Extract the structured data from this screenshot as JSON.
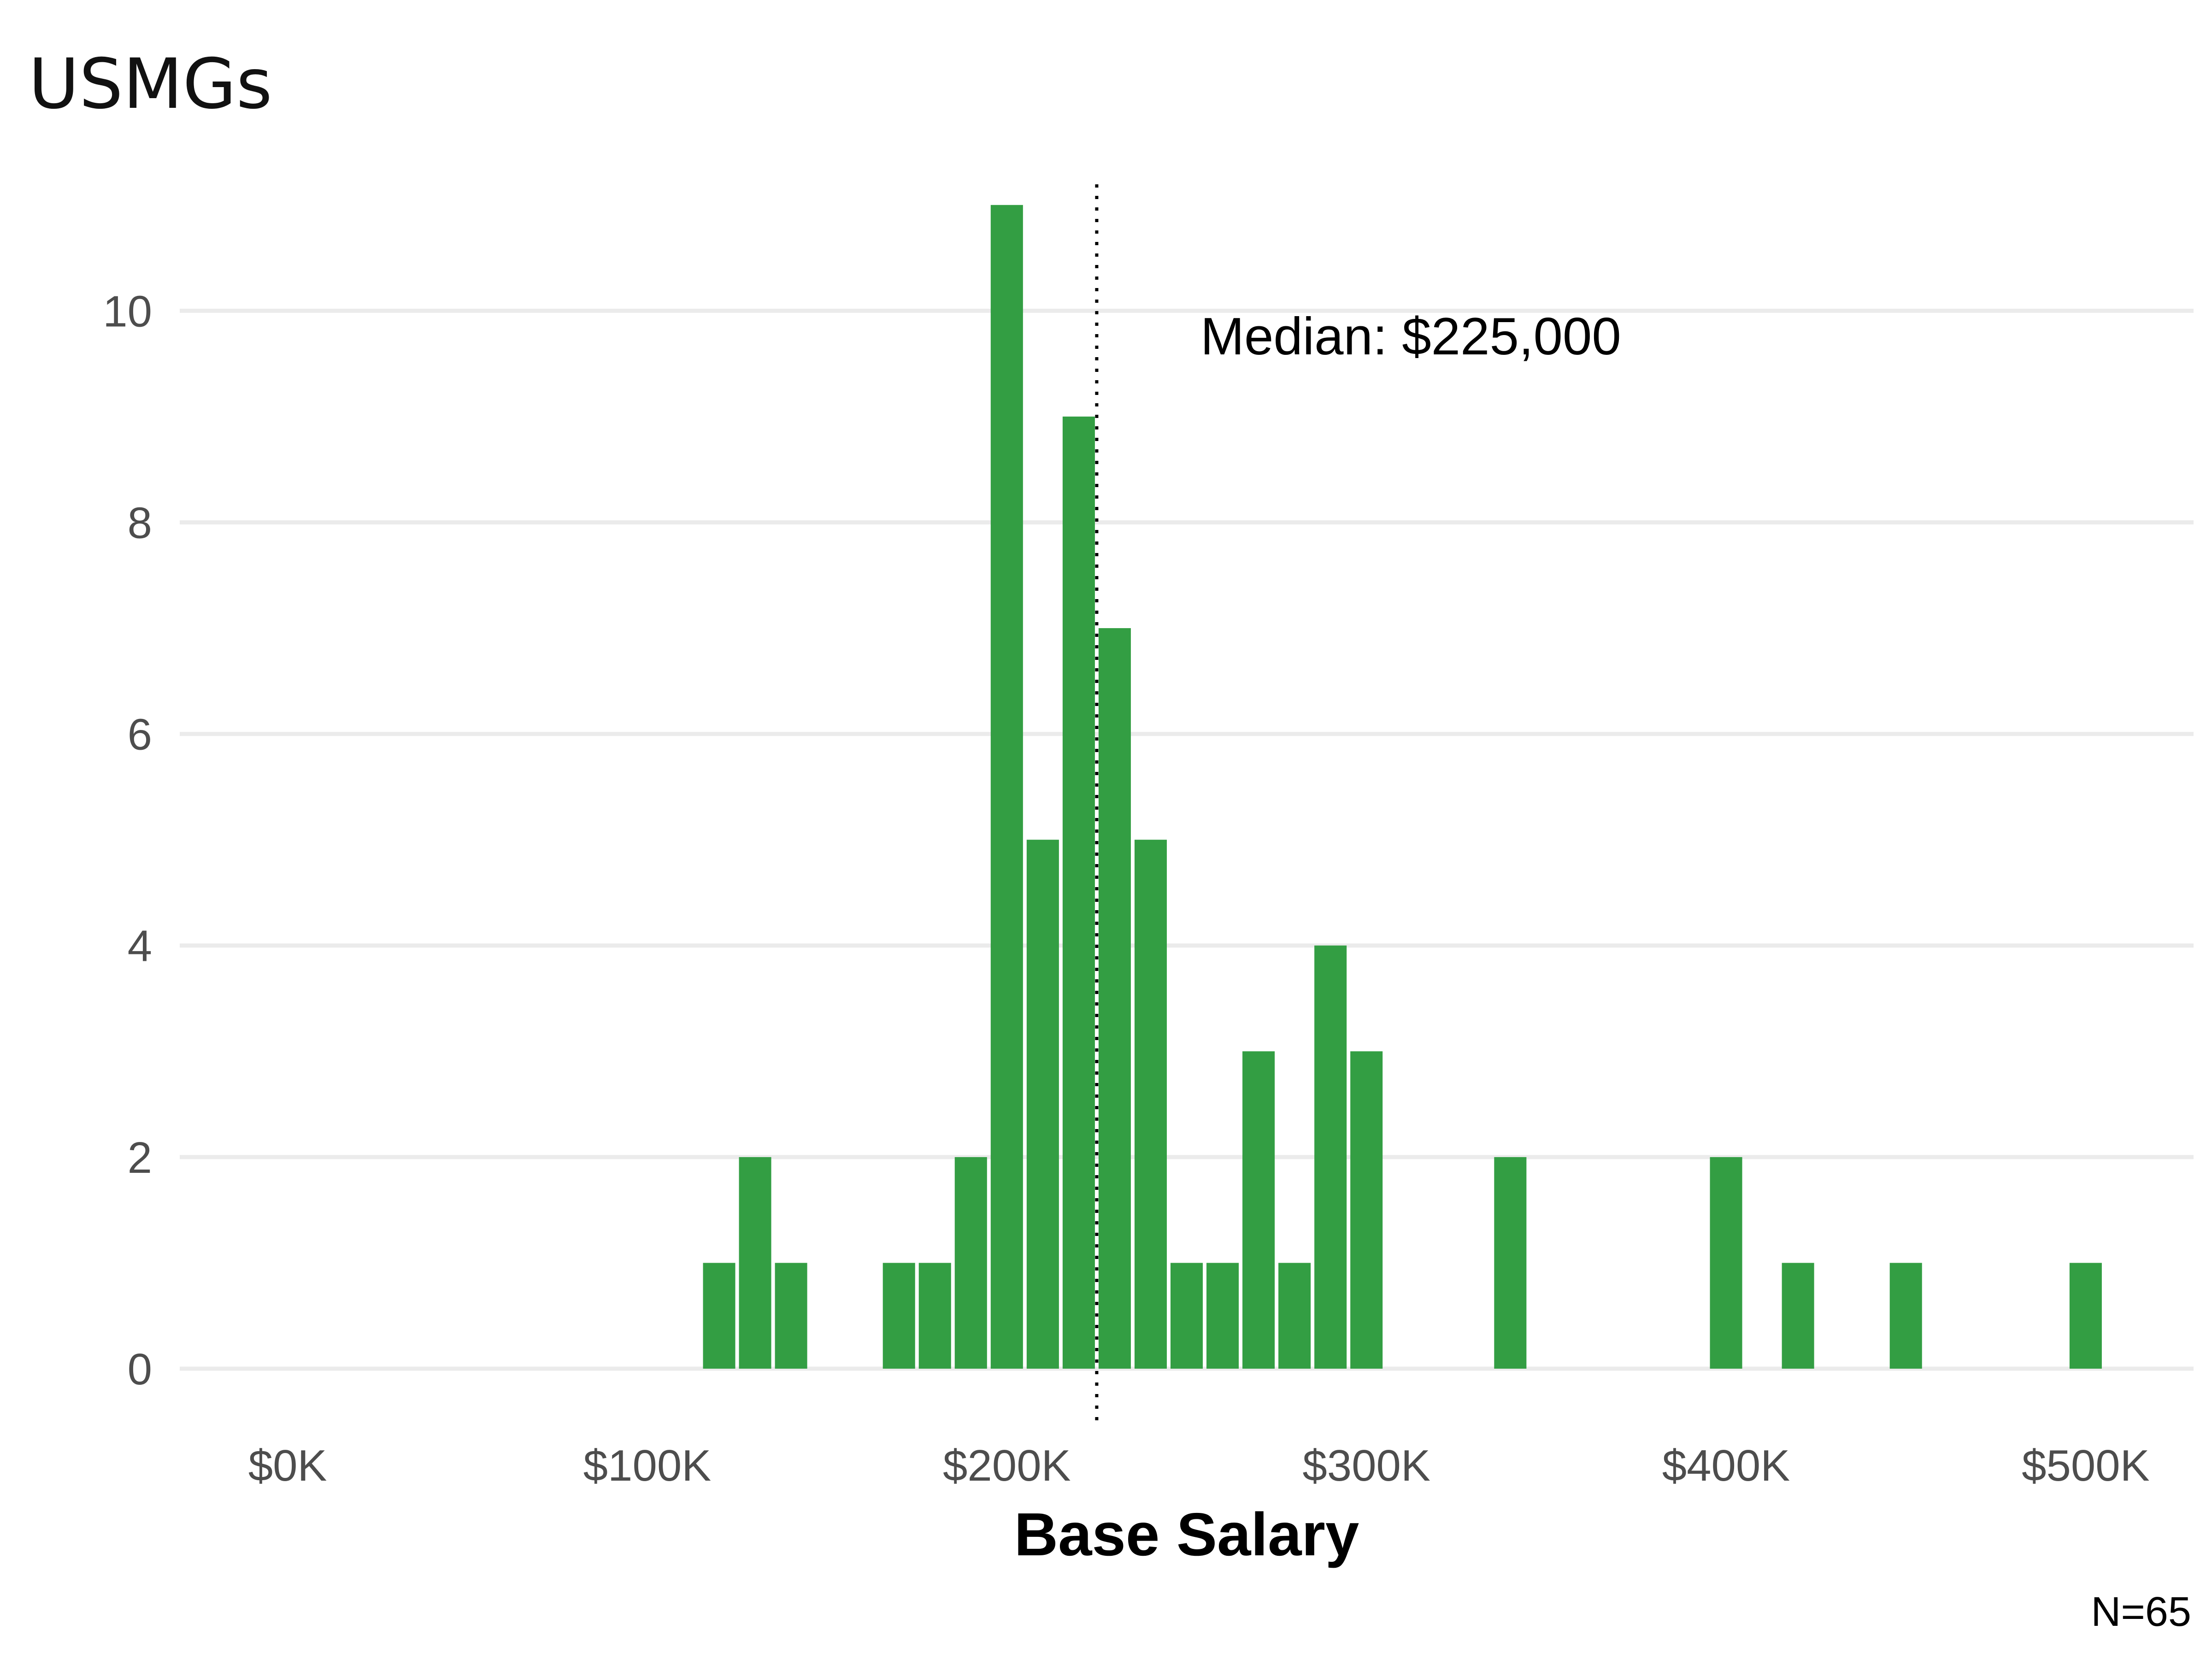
{
  "chart_data": {
    "type": "bar",
    "title": "USMGs",
    "xlabel": "Base Salary",
    "ylabel": "",
    "x_tick_labels": [
      "$0K",
      "$100K",
      "$200K",
      "$300K",
      "$400K",
      "$500K"
    ],
    "x_ticks": [
      0,
      100000,
      200000,
      300000,
      400000,
      500000
    ],
    "y_ticks": [
      0,
      2,
      4,
      6,
      8,
      10
    ],
    "xlim": [
      -30000,
      530000
    ],
    "ylim": [
      0,
      11.5
    ],
    "bin_width": 10000,
    "bin_centers": [
      120000,
      130000,
      140000,
      170000,
      180000,
      190000,
      200000,
      210000,
      220000,
      230000,
      240000,
      250000,
      260000,
      270000,
      280000,
      290000,
      300000,
      340000,
      400000,
      420000,
      450000,
      500000
    ],
    "values": [
      1,
      2,
      1,
      1,
      1,
      2,
      11,
      5,
      9,
      7,
      5,
      1,
      1,
      3,
      1,
      4,
      3,
      2,
      2,
      1,
      1,
      1
    ],
    "bar_color": "#339e43",
    "grid": true,
    "median": {
      "value": 225000,
      "label": "Median: $225,000"
    },
    "caption": "N=65"
  }
}
